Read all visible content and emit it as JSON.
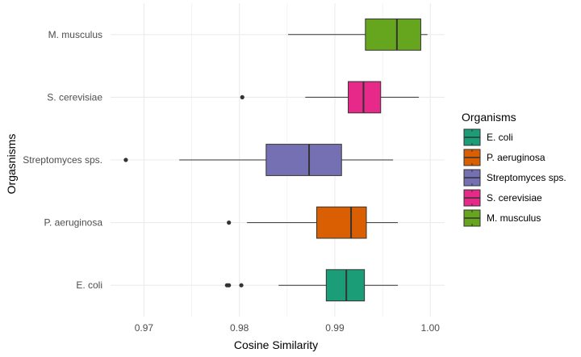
{
  "chart_data": {
    "type": "boxplot",
    "orientation": "horizontal",
    "xlabel": "Cosine Similarity",
    "ylabel": "Orgasnisms",
    "xlim": [
      0.9665,
      1.0015
    ],
    "x_ticks": [
      0.97,
      0.98,
      0.99,
      1.0
    ],
    "x_tick_labels": [
      "0.97",
      "0.98",
      "0.99",
      "1.00"
    ],
    "grid": true,
    "legend": {
      "title": "Organisms",
      "placement": "right"
    },
    "categories": [
      "E. coli",
      "P. aeruginosa",
      "Streptomyces sps.",
      "S. cerevisiae",
      "M. musculus"
    ],
    "series": [
      {
        "name": "E. coli",
        "color": "#1b9e77",
        "whisker_low": 0.9841,
        "q1": 0.9891,
        "median": 0.9912,
        "q3": 0.9931,
        "whisker_high": 0.9966,
        "outliers": [
          0.9787,
          0.9789,
          0.9802
        ]
      },
      {
        "name": "P. aeruginosa",
        "color": "#d95f02",
        "whisker_low": 0.9808,
        "q1": 0.9881,
        "median": 0.9917,
        "q3": 0.9933,
        "whisker_high": 0.9966,
        "outliers": [
          0.9789
        ]
      },
      {
        "name": "Streptomyces sps.",
        "color": "#7570b3",
        "whisker_low": 0.9737,
        "q1": 0.9828,
        "median": 0.9873,
        "q3": 0.9907,
        "whisker_high": 0.9961,
        "outliers": [
          0.9681
        ]
      },
      {
        "name": "S. cerevisiae",
        "color": "#e7298a",
        "whisker_low": 0.9869,
        "q1": 0.9914,
        "median": 0.993,
        "q3": 0.9948,
        "whisker_high": 0.9988,
        "outliers": [
          0.9803
        ]
      },
      {
        "name": "M. musculus",
        "color": "#66a61e",
        "whisker_low": 0.9851,
        "q1": 0.9932,
        "median": 0.9965,
        "q3": 0.999,
        "whisker_high": 0.9997,
        "outliers": []
      }
    ]
  }
}
